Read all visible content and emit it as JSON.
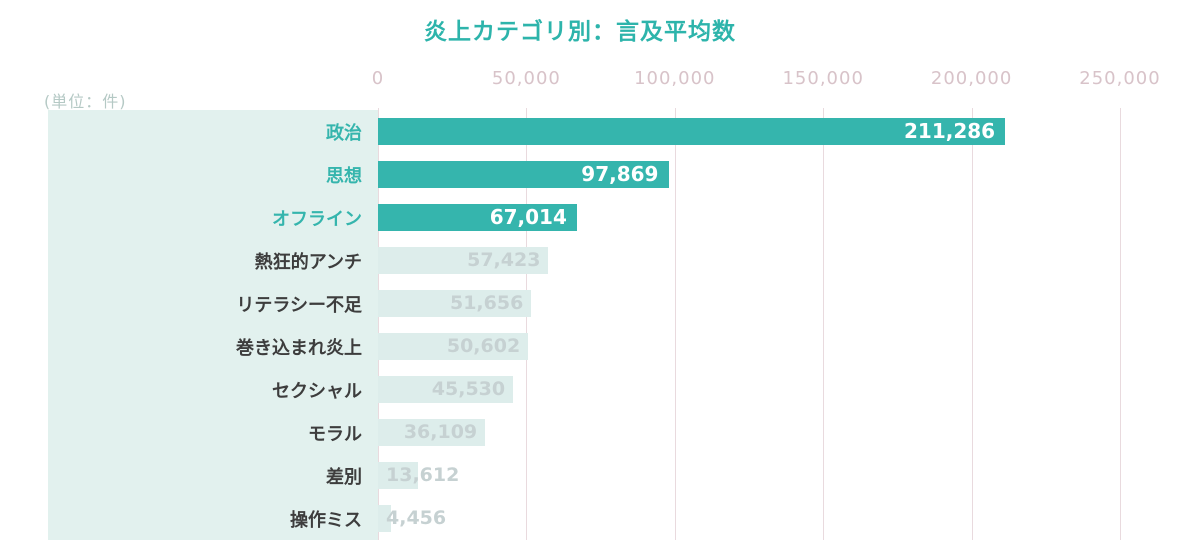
{
  "title": "炎上カテゴリ別：言及平均数",
  "unit_label": "(単位：件)",
  "colors": {
    "title": "#2db4ab",
    "unit_text": "#b5c9c5",
    "axis_text": "#d8c3c9",
    "gridline": "#e9dade",
    "panel_bg": "#e2f1ee",
    "bar_highlight": "#35b5ad",
    "bar_faded": "#ddedeb",
    "label_dark": "#3d3d3d",
    "label_highlight": "#35b5ad",
    "value_on_bar": "#ffffff",
    "value_faded": "#c6d1d2"
  },
  "chart_data": {
    "type": "bar",
    "orientation": "horizontal",
    "title": "炎上カテゴリ別：言及平均数",
    "unit": "件",
    "xlim": [
      0,
      250000
    ],
    "grid": true,
    "x_ticks": [
      "0",
      "50,000",
      "100,000",
      "150,000",
      "200,000",
      "250,000"
    ],
    "categories": [
      "政治",
      "思想",
      "オフライン",
      "熱狂的アンチ",
      "リテラシー不足",
      "巻き込まれ炎上",
      "セクシャル",
      "モラル",
      "差別",
      "操作ミス"
    ],
    "values": [
      211286,
      97869,
      67014,
      57423,
      51656,
      50602,
      45530,
      36109,
      13612,
      4456
    ],
    "value_labels": [
      "211,286",
      "97,869",
      "67,014",
      "57,423",
      "51,656",
      "50,602",
      "45,530",
      "36,109",
      "13,612",
      "4,456"
    ],
    "highlighted": [
      true,
      true,
      true,
      false,
      false,
      false,
      false,
      false,
      false,
      false
    ]
  }
}
